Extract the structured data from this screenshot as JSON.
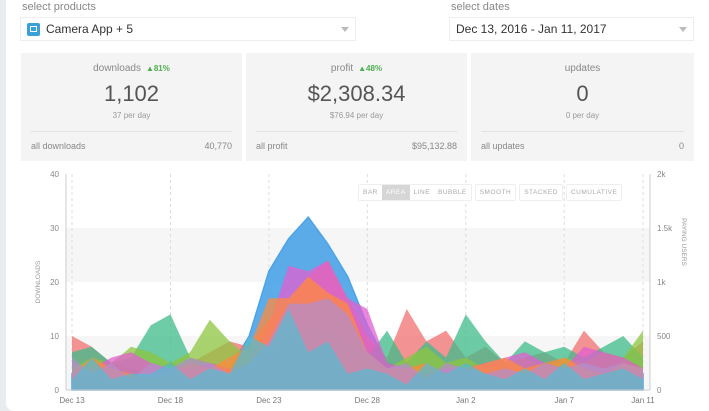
{
  "filters": {
    "products_label": "select products",
    "product_value": "Camera App + 5",
    "dates_label": "select dates",
    "dates_value": "Dec 13, 2016 - Jan 11, 2017"
  },
  "cards": [
    {
      "title": "downloads",
      "change": "▲81%",
      "value": "1,102",
      "sub": "37 per day",
      "foot_label": "all downloads",
      "foot_value": "40,770"
    },
    {
      "title": "profit",
      "change": "▲48%",
      "value": "$2,308.34",
      "sub": "$76.94 per day",
      "foot_label": "all profit",
      "foot_value": "$95,132.88"
    },
    {
      "title": "updates",
      "change": "",
      "value": "0",
      "sub": "0 per day",
      "foot_label": "all updates",
      "foot_value": "0"
    }
  ],
  "chart_toggles": {
    "type": [
      "BAR",
      "AREA",
      "LINE",
      "BUBBLE"
    ],
    "active": "AREA",
    "options": [
      "SMOOTH",
      "STACKED",
      "CUMULATIVE"
    ]
  },
  "chart_data": {
    "type": "area",
    "ylabel": "DOWNLOADS",
    "y2label": "PAYING USERS",
    "ylim": [
      0,
      40
    ],
    "yticks": [
      "0",
      "10",
      "20",
      "30",
      "40"
    ],
    "y2lim": [
      0,
      2000
    ],
    "y2ticks": [
      "0",
      "500",
      "1k",
      "1.5k",
      "2k"
    ],
    "x": [
      "Dec 13",
      "Dec 14",
      "Dec 15",
      "Dec 16",
      "Dec 17",
      "Dec 18",
      "Dec 19",
      "Dec 20",
      "Dec 21",
      "Dec 22",
      "Dec 23",
      "Dec 24",
      "Dec 25",
      "Dec 26",
      "Dec 27",
      "Dec 28",
      "Dec 29",
      "Dec 30",
      "Dec 31",
      "Jan 1",
      "Jan 2",
      "Jan 3",
      "Jan 4",
      "Jan 5",
      "Jan 6",
      "Jan 7",
      "Jan 8",
      "Jan 9",
      "Jan 10",
      "Jan 11"
    ],
    "xticks": [
      "Dec 13",
      "Dec 18",
      "Dec 23",
      "Dec 28",
      "Jan 2",
      "Jan 7",
      "Jan 11"
    ],
    "grid": true,
    "series": [
      {
        "color": "#4aa3e8",
        "values": [
          3,
          5,
          3,
          3,
          3,
          5,
          3,
          4,
          4,
          10,
          22,
          28,
          32,
          27,
          21,
          12,
          5,
          4,
          4,
          3,
          4,
          5,
          4,
          3,
          3,
          4,
          3,
          3,
          4,
          3
        ]
      },
      {
        "color": "#f07070",
        "values": [
          10,
          8,
          5,
          4,
          3,
          4,
          5,
          7,
          9,
          8,
          13,
          16,
          21,
          24,
          17,
          10,
          6,
          15,
          9,
          11,
          6,
          8,
          5,
          6,
          7,
          5,
          11,
          7,
          6,
          9
        ]
      },
      {
        "color": "#3dbb8a",
        "values": [
          7,
          8,
          5,
          6,
          12,
          14,
          6,
          5,
          4,
          9,
          7,
          10,
          12,
          11,
          9,
          6,
          11,
          5,
          9,
          6,
          14,
          9,
          5,
          9,
          7,
          8,
          6,
          8,
          10,
          6
        ]
      },
      {
        "color": "#8cc63f",
        "values": [
          4,
          6,
          5,
          8,
          7,
          5,
          7,
          13,
          9,
          6,
          5,
          6,
          8,
          10,
          7,
          5,
          4,
          6,
          8,
          5,
          6,
          4,
          5,
          6,
          4,
          6,
          5,
          7,
          6,
          11
        ]
      },
      {
        "color": "#e15fd0",
        "values": [
          3,
          4,
          6,
          7,
          5,
          4,
          4,
          5,
          4,
          5,
          12,
          23,
          22,
          24,
          17,
          15,
          5,
          4,
          3,
          4,
          4,
          5,
          6,
          7,
          5,
          4,
          8,
          7,
          6,
          4
        ]
      },
      {
        "color": "#ff8a3d",
        "values": [
          3,
          6,
          4,
          3,
          2,
          3,
          5,
          4,
          6,
          8,
          17,
          17,
          21,
          18,
          16,
          7,
          4,
          4,
          5,
          3,
          4,
          5,
          6,
          4,
          5,
          6,
          4,
          3,
          5,
          4
        ]
      },
      {
        "color": "#b48ec8",
        "values": [
          6,
          3,
          5,
          2,
          5,
          4,
          6,
          5,
          3,
          5,
          9,
          16,
          16,
          17,
          14,
          7,
          4,
          5,
          2,
          5,
          4,
          3,
          4,
          3,
          5,
          4,
          5,
          4,
          5,
          4
        ]
      },
      {
        "color": "#5bb8d0",
        "values": [
          2,
          6,
          2,
          3,
          3,
          5,
          2,
          4,
          3,
          10,
          8,
          15,
          7,
          9,
          3,
          4,
          3,
          1,
          5,
          3,
          5,
          3,
          2,
          4,
          2,
          5,
          2,
          3,
          4,
          2
        ]
      }
    ]
  }
}
